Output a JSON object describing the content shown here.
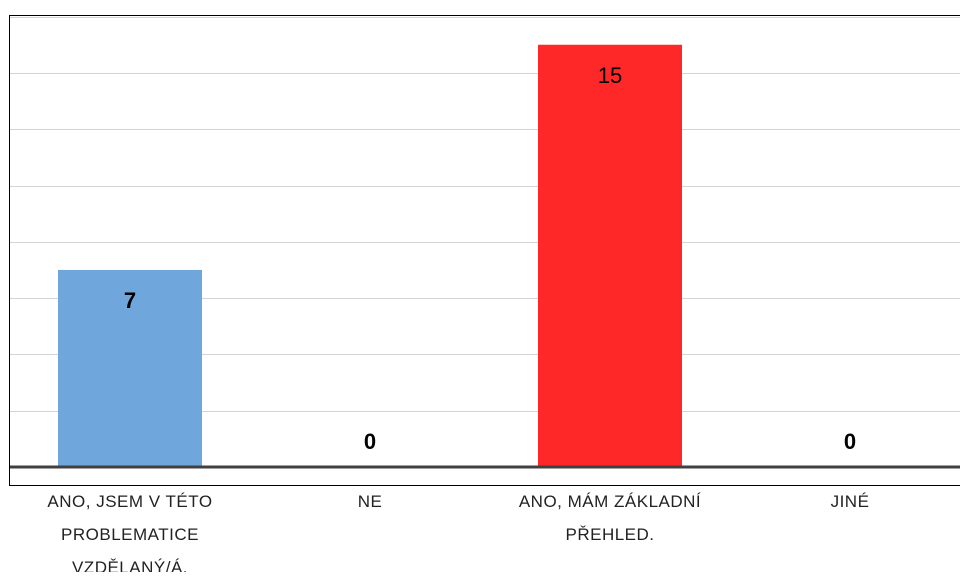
{
  "chart_data": {
    "type": "bar",
    "title": "",
    "xlabel": "",
    "ylabel": "",
    "categories": [
      [
        "ANO, JSEM V TÉTO",
        "PROBLEMATICE",
        "VZDĚLANÝ/Á."
      ],
      [
        "NE"
      ],
      [
        "ANO, MÁM ZÁKLADNÍ",
        "PŘEHLED."
      ],
      [
        "JINÉ"
      ]
    ],
    "values": [
      7,
      0,
      15,
      0
    ],
    "data_labels": [
      "7",
      "0",
      "15",
      "0"
    ],
    "colors": [
      "#6fa6db",
      "#6fa6db",
      "#ff2828",
      "#6fa6db"
    ],
    "ylim": [
      0,
      16
    ],
    "ytick_step": 2,
    "grid": true,
    "grid_color": "#d4d4d4",
    "axis_color": "#404040",
    "frame_color": "#000000",
    "legend": "none"
  }
}
